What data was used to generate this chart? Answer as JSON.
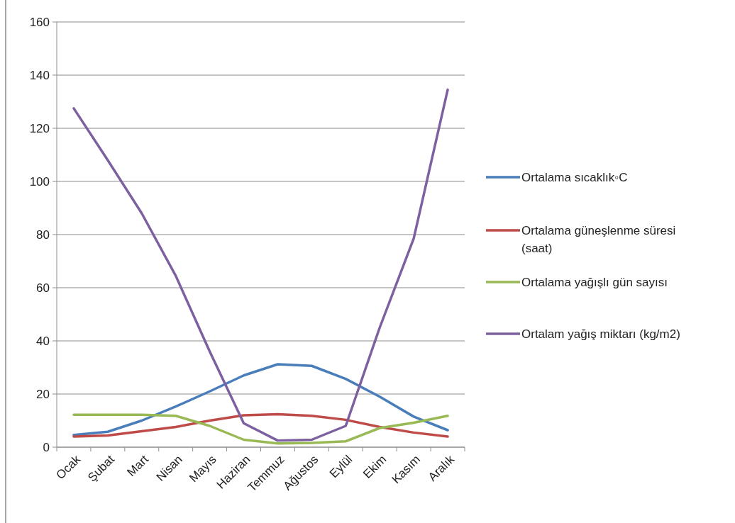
{
  "chart_data": {
    "type": "line",
    "categories": [
      "Ocak",
      "Şubat",
      "Mart",
      "Nisan",
      "Mayıs",
      "Haziran",
      "Temmuz",
      "Ağustos",
      "Eylül",
      "Ekim",
      "Kasım",
      "Aralık"
    ],
    "ylim": [
      0,
      160
    ],
    "yticks": [
      0,
      20,
      40,
      60,
      80,
      100,
      120,
      140,
      160
    ],
    "grid": "y",
    "legend": "right",
    "marker": "none",
    "line_style": "solid",
    "series": [
      {
        "name": "Ortalama sıcaklık◦C",
        "color": "#4a7ebb",
        "values": [
          4.6,
          5.8,
          10,
          15.3,
          21,
          27,
          31.2,
          30.6,
          25.7,
          19,
          11.5,
          6.4
        ]
      },
      {
        "name": "Ortalama güneşlenme süresi (saat)",
        "color": "#be4b48",
        "values": [
          4,
          4.4,
          6,
          7.6,
          10,
          12,
          12.4,
          11.8,
          10.3,
          7.6,
          5.5,
          4
        ]
      },
      {
        "name": "Ortalama yağışlı gün sayısı",
        "color": "#98b954",
        "values": [
          12.2,
          12.2,
          12.2,
          11.8,
          8,
          2.8,
          1.4,
          1.6,
          2.2,
          7.2,
          9.2,
          11.8
        ]
      },
      {
        "name": "Ortalam yağış miktarı (kg/m2)",
        "color": "#7d60a0",
        "values": [
          127.5,
          108,
          88,
          64.5,
          36,
          9,
          2.5,
          2.8,
          8,
          45,
          78.5,
          134.5
        ]
      }
    ]
  }
}
